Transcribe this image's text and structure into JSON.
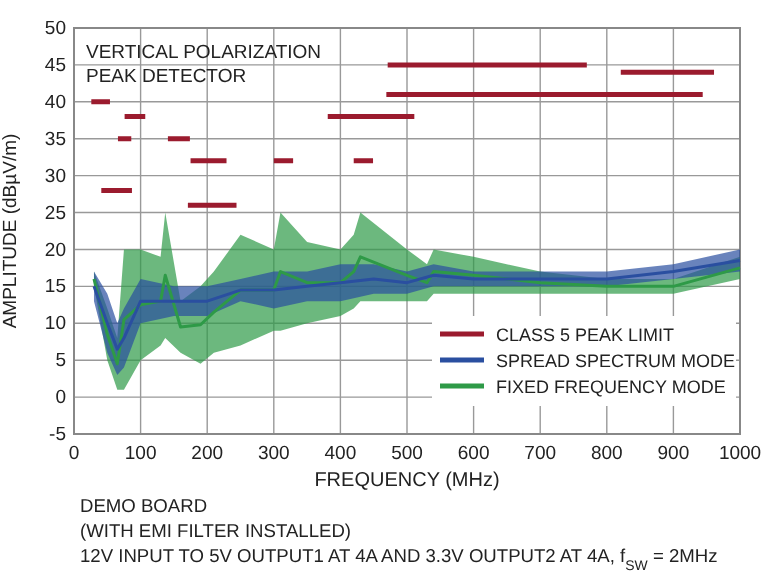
{
  "chart_data": {
    "type": "line",
    "xlabel": "FREQUENCY (MHz)",
    "ylabel": "AMPLITUDE (dBµV/m)",
    "xlim": [
      0,
      1000
    ],
    "xticks": [
      0,
      100,
      200,
      300,
      400,
      500,
      600,
      700,
      800,
      900,
      1000
    ],
    "ylim": [
      -5,
      50
    ],
    "yticks": [
      -5,
      0,
      5,
      10,
      15,
      20,
      25,
      30,
      35,
      40,
      45,
      50
    ],
    "grid": true,
    "legend": "bottom right",
    "line_style": "solid",
    "marker": "none",
    "annotations": [
      "VERTICAL POLARIZATION",
      "PEAK DETECTOR",
      "DEMO BOARD",
      "(WITH EMI FILTER INSTALLED)",
      "12V INPUT TO 5V OUTPUT1 AT 4A AND 3.3V OUTPUT2 AT 4A, f$_{SW}$ = 2MHz"
    ],
    "series": [
      {
        "name": "FIXED FREQUENCY MODE",
        "color": "#2e9a47",
        "x": [
          30,
          50,
          65,
          75,
          100,
          130,
          137,
          160,
          190,
          210,
          250,
          300,
          310,
          350,
          400,
          420,
          430,
          500,
          530,
          540,
          600,
          700,
          800,
          900,
          1000
        ],
        "lower": [
          15,
          5,
          1,
          1,
          5,
          7,
          8,
          6,
          4.5,
          6,
          7,
          9,
          9,
          10,
          11,
          12,
          13,
          13,
          13,
          14,
          14,
          14,
          14,
          14,
          16
        ],
        "upper": [
          17,
          12,
          8,
          20,
          20,
          19,
          25,
          13,
          15,
          17,
          22,
          20,
          25,
          21,
          20,
          22,
          25,
          20,
          18,
          20,
          19,
          17,
          16,
          16,
          19
        ],
        "values": [
          16,
          8.5,
          4.5,
          10.5,
          12.5,
          13,
          16.5,
          9.5,
          9.8,
          11.5,
          14.5,
          14.5,
          17,
          15.5,
          15.5,
          17,
          19,
          16.5,
          15.5,
          17,
          16.5,
          15.5,
          15,
          15,
          17.5
        ]
      },
      {
        "name": "SPREAD SPECTRUM MODE",
        "color": "#2a4fa0",
        "x": [
          30,
          50,
          65,
          75,
          100,
          150,
          200,
          250,
          300,
          350,
          400,
          450,
          500,
          540,
          600,
          700,
          800,
          900,
          1000
        ],
        "lower": [
          13,
          6,
          3,
          4,
          10,
          11,
          11,
          13,
          12,
          13,
          13,
          14,
          14,
          15,
          15,
          15,
          15,
          16,
          17
        ],
        "upper": [
          17,
          14,
          10,
          12,
          16,
          15,
          15,
          16,
          17,
          17,
          18,
          18,
          17,
          18,
          17,
          17,
          17,
          18,
          20
        ],
        "values": [
          15,
          10,
          6.5,
          8,
          13,
          13,
          13,
          14.5,
          14.5,
          15,
          15.5,
          16,
          15.5,
          16.5,
          16,
          16,
          16,
          17,
          18.5
        ]
      },
      {
        "name": "CLASS 5 PEAK LIMIT",
        "color": "#9b1b2e",
        "x": [
          26,
          54,
          null,
          76,
          107,
          null,
          66,
          86,
          null,
          141,
          174,
          null,
          175,
          229,
          null,
          41,
          87,
          null,
          171,
          244,
          null,
          300,
          329,
          null,
          381,
          511,
          null,
          420,
          449,
          null,
          471,
          770,
          null,
          469,
          944,
          null,
          821,
          961
        ],
        "values": [
          40,
          40,
          null,
          38,
          38,
          null,
          35,
          35,
          null,
          35,
          35,
          null,
          32,
          32,
          null,
          28,
          28,
          null,
          26,
          26,
          null,
          32,
          32,
          null,
          38,
          38,
          null,
          32,
          32,
          null,
          45,
          45,
          null,
          41,
          41,
          null,
          44,
          44
        ]
      }
    ]
  }
}
